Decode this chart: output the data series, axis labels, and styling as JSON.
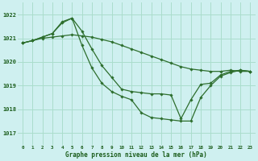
{
  "bg_color": "#cff0f0",
  "grid_color": "#aaddcc",
  "line_color": "#2d6e2d",
  "marker_color": "#2d6e2d",
  "title": "Graphe pression niveau de la mer (hPa)",
  "title_color": "#1a5c1a",
  "ylim": [
    1016.5,
    1022.5
  ],
  "xlim": [
    -0.5,
    23.5
  ],
  "yticks": [
    1017,
    1018,
    1019,
    1020,
    1021,
    1022
  ],
  "xticks": [
    0,
    1,
    2,
    3,
    4,
    5,
    6,
    7,
    8,
    9,
    10,
    11,
    12,
    13,
    14,
    15,
    16,
    17,
    18,
    19,
    20,
    21,
    22,
    23
  ],
  "series1_x": [
    0,
    1,
    2,
    3,
    4,
    5,
    6,
    7,
    8,
    9,
    10,
    11,
    12,
    13,
    14,
    15,
    16,
    17,
    18,
    19,
    20,
    21,
    22,
    23
  ],
  "series1_y": [
    1020.8,
    1020.9,
    1021.0,
    1021.05,
    1021.1,
    1021.15,
    1021.1,
    1021.05,
    1020.95,
    1020.85,
    1020.7,
    1020.55,
    1020.4,
    1020.25,
    1020.1,
    1019.95,
    1019.8,
    1019.7,
    1019.65,
    1019.6,
    1019.6,
    1019.65,
    1019.6,
    1019.6
  ],
  "series2_x": [
    0,
    1,
    2,
    3,
    4,
    5,
    6,
    7,
    8,
    9,
    10,
    11,
    12,
    13,
    14,
    15,
    16,
    17,
    18,
    19,
    20,
    21,
    22,
    23
  ],
  "series2_y": [
    1020.8,
    1020.9,
    1021.05,
    1021.2,
    1021.7,
    1021.85,
    1021.3,
    1020.55,
    1019.85,
    1019.35,
    1018.85,
    1018.75,
    1018.7,
    1018.65,
    1018.65,
    1018.6,
    1017.6,
    1018.4,
    1019.05,
    1019.1,
    1019.45,
    1019.6,
    1019.65,
    1019.6
  ],
  "series3_x": [
    0,
    1,
    2,
    3,
    4,
    5,
    6,
    7,
    8,
    9,
    10,
    11,
    12,
    13,
    14,
    15,
    16,
    17,
    18,
    19,
    20,
    21,
    22,
    23
  ],
  "series3_y": [
    1020.8,
    1020.9,
    1021.05,
    1021.2,
    1021.65,
    1021.85,
    1020.7,
    1019.75,
    1019.1,
    1018.75,
    1018.55,
    1018.4,
    1017.85,
    1017.65,
    1017.6,
    1017.55,
    1017.5,
    1017.5,
    1018.5,
    1019.0,
    1019.4,
    1019.55,
    1019.65,
    1019.6
  ]
}
